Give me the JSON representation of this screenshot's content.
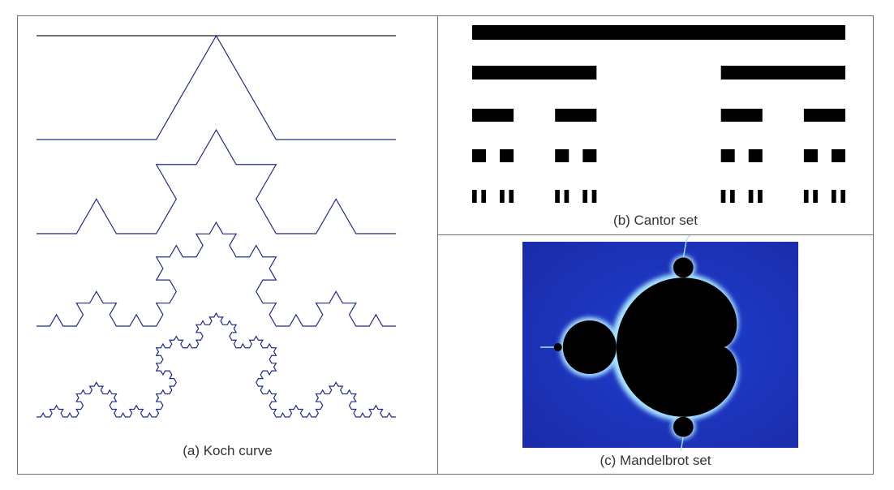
{
  "figure": {
    "panels": [
      {
        "id": "koch",
        "caption": "(a) Koch curve",
        "iterations": [
          0,
          1,
          2,
          3,
          4
        ],
        "stroke_color": "#1f2a8a"
      },
      {
        "id": "cantor",
        "caption": "(b) Cantor set",
        "levels": [
          0,
          1,
          2,
          3,
          4
        ],
        "bar_color": "#000000"
      },
      {
        "id": "mandelbrot",
        "caption": "(c) Mandelbrot set",
        "background_color": "#1b2aa8",
        "set_color": "#000000",
        "glow_color": "#a8e4ff"
      }
    ]
  }
}
